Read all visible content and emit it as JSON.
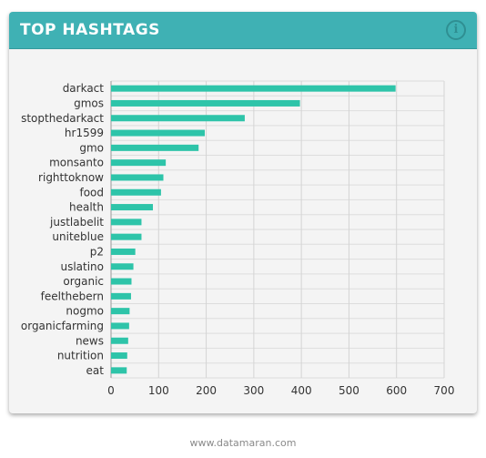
{
  "header": {
    "title": "TOP HASHTAGS",
    "info_icon": "info-icon",
    "accent_color": "#3fb1b4"
  },
  "footer": {
    "text": "www.datamaran.com"
  },
  "chart_data": {
    "type": "bar",
    "orientation": "horizontal",
    "title": "TOP HASHTAGS",
    "xlabel": "",
    "ylabel": "",
    "xlim": [
      0,
      700
    ],
    "x_ticks": [
      0,
      100,
      200,
      300,
      400,
      500,
      600,
      700
    ],
    "grid": true,
    "bar_color": "#2ec4a9",
    "categories": [
      "darkact",
      "gmos",
      "stopthedarkact",
      "hr1599",
      "gmo",
      "monsanto",
      "righttoknow",
      "food",
      "health",
      "justlabelit",
      "uniteblue",
      "p2",
      "uslatino",
      "organic",
      "feelthebern",
      "nogmo",
      "organicfarming",
      "news",
      "nutrition",
      "eat"
    ],
    "values": [
      598,
      397,
      281,
      197,
      184,
      115,
      110,
      105,
      88,
      64,
      64,
      51,
      47,
      43,
      42,
      39,
      38,
      36,
      34,
      33
    ]
  }
}
